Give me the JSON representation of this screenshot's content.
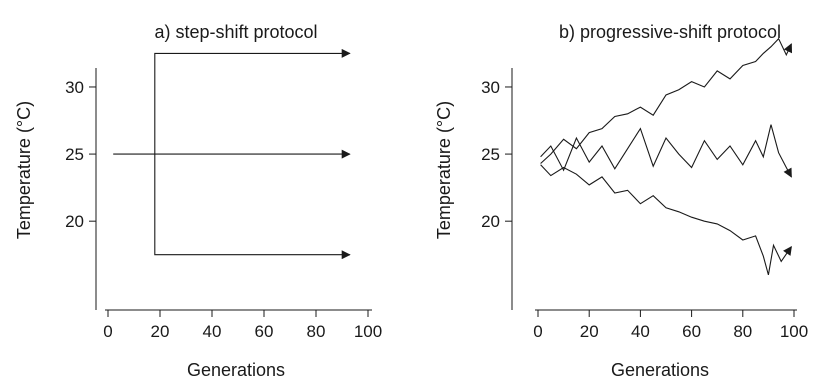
{
  "chart_data": [
    {
      "type": "line",
      "title": "a) step-shift protocol",
      "xlabel": "Generations",
      "ylabel": "Temperature (°C)",
      "xlim": [
        0,
        100
      ],
      "ylim": [
        14.5,
        33.5
      ],
      "xticks": [
        0,
        20,
        40,
        60,
        80,
        100
      ],
      "yticks": [
        20,
        25,
        30
      ],
      "arrows": true,
      "series": [
        {
          "x": [
            2,
            93
          ],
          "y": [
            25,
            25
          ]
        },
        {
          "x": [
            18,
            18,
            93
          ],
          "y": [
            25,
            32.5,
            32.5
          ]
        },
        {
          "x": [
            18,
            18,
            93
          ],
          "y": [
            25,
            17.5,
            17.5
          ]
        }
      ]
    },
    {
      "type": "line",
      "title": "b) progressive-shift protocol",
      "xlabel": "Generations",
      "ylabel": "Temperature (°C)",
      "xlim": [
        0,
        100
      ],
      "ylim": [
        14.5,
        33.5
      ],
      "xticks": [
        0,
        20,
        40,
        60,
        80,
        100
      ],
      "yticks": [
        20,
        25,
        30
      ],
      "arrows": true,
      "series": [
        {
          "x": [
            1,
            5,
            10,
            15,
            20,
            25,
            30,
            35,
            40,
            45,
            50,
            55,
            60,
            65,
            70,
            75,
            80,
            85,
            88,
            91,
            94,
            97,
            99
          ],
          "y": [
            24.3,
            25.0,
            26.1,
            25.4,
            26.6,
            26.9,
            27.8,
            28.0,
            28.5,
            27.9,
            29.4,
            29.8,
            30.4,
            30.0,
            31.2,
            30.6,
            31.6,
            31.9,
            32.5,
            33.0,
            33.6,
            32.4,
            33.2
          ]
        },
        {
          "x": [
            1,
            5,
            10,
            15,
            20,
            25,
            30,
            35,
            40,
            45,
            50,
            55,
            60,
            65,
            70,
            75,
            80,
            85,
            88,
            91,
            94,
            97,
            99
          ],
          "y": [
            24.8,
            25.6,
            23.8,
            26.2,
            24.4,
            25.6,
            23.9,
            25.4,
            26.9,
            24.1,
            26.2,
            25.0,
            24.0,
            26.0,
            24.6,
            25.6,
            24.2,
            26.0,
            24.8,
            27.2,
            25.1,
            24.0,
            23.3
          ]
        },
        {
          "x": [
            1,
            5,
            10,
            15,
            20,
            25,
            30,
            35,
            40,
            45,
            50,
            55,
            60,
            65,
            70,
            75,
            80,
            85,
            88,
            90,
            92,
            95,
            99
          ],
          "y": [
            24.2,
            23.4,
            24.0,
            23.5,
            22.7,
            23.3,
            22.1,
            22.3,
            21.3,
            21.9,
            21.0,
            20.7,
            20.3,
            20.0,
            19.8,
            19.3,
            18.6,
            18.9,
            17.4,
            16.0,
            18.2,
            17.0,
            18.1
          ]
        }
      ]
    }
  ]
}
